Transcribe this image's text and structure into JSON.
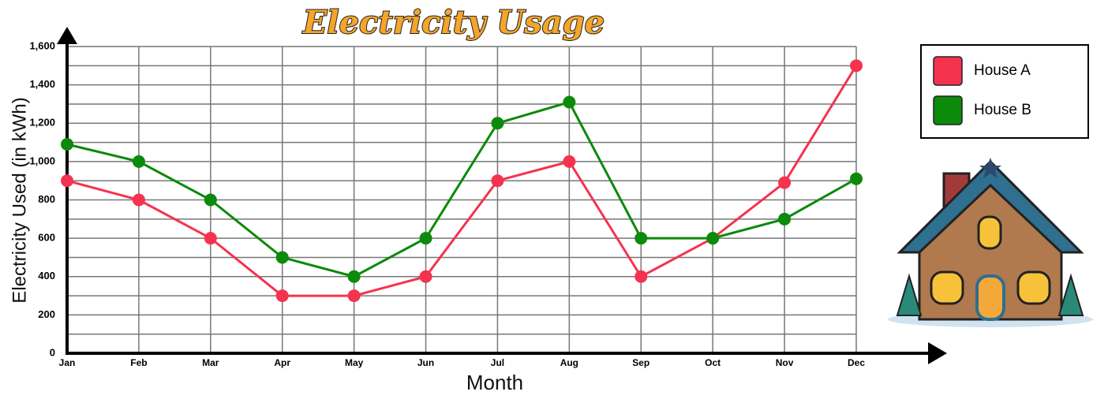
{
  "chart_data": {
    "type": "line",
    "title": "Electricity Usage",
    "x_label": "Month",
    "y_label": "Electricity Used (in kWh)",
    "categories": [
      "Jan",
      "Feb",
      "Mar",
      "Apr",
      "May",
      "Jun",
      "Jul",
      "Aug",
      "Sep",
      "Oct",
      "Nov",
      "Dec"
    ],
    "series": [
      {
        "name": "House A",
        "color": "#f5334f",
        "values": [
          900,
          800,
          600,
          300,
          300,
          400,
          900,
          1000,
          400,
          600,
          890,
          1500
        ]
      },
      {
        "name": "House B",
        "color": "#0b8a0b",
        "values": [
          1090,
          1000,
          800,
          500,
          400,
          600,
          1200,
          1310,
          600,
          600,
          700,
          910
        ]
      }
    ],
    "ylim": [
      0,
      1600
    ],
    "yticks": [
      0,
      200,
      400,
      600,
      800,
      {
        "value": 1000,
        "label": "1,000"
      },
      {
        "value": 1200,
        "label": "1,200"
      },
      {
        "value": 1400,
        "label": "1,400"
      },
      {
        "value": 1600,
        "label": "1,600"
      }
    ],
    "grid": true,
    "legend": "upper right"
  }
}
